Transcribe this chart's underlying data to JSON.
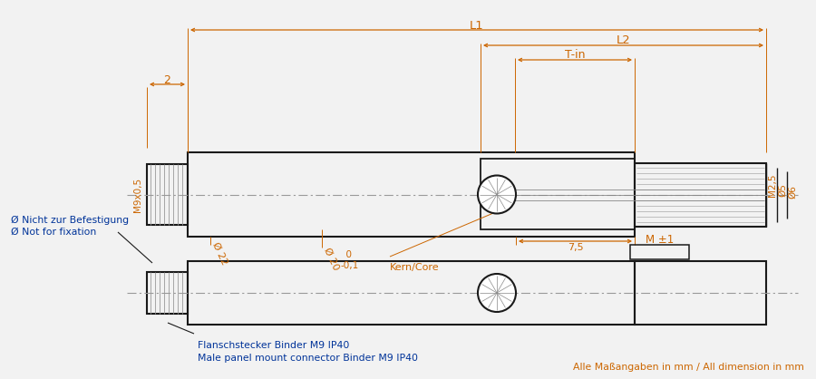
{
  "bg_color": "#f2f2f2",
  "line_color": "#1a1a1a",
  "dim_color": "#cc6600",
  "centerline_color": "#999999",
  "text_blue": "#003399",
  "text_orange": "#cc6600",
  "footer": "Alle Maßangaben in mm / All dimension in mm",
  "label_L1": "L1",
  "label_L2": "L2",
  "label_Tin": "T-in",
  "label_2": "2",
  "label_M9": "M9x0,5",
  "label_phi22": "Ø 22",
  "label_phi20": "Ø 20",
  "label_tol": "  0\n-0,1",
  "label_kern": "Kern/Core",
  "label_75": "7,5",
  "label_M25": "M2,5",
  "label_phi5": "Ø5",
  "label_phi6": "Ø6",
  "label_Mpm1": "M ±1",
  "label_nicht": "Ø Nicht zur Befestigung",
  "label_not": "Ø Not for fixation",
  "label_flansch": "Flanschstecker Binder M9 IP40",
  "label_male": "Male panel mount connector Binder M9 IP40"
}
